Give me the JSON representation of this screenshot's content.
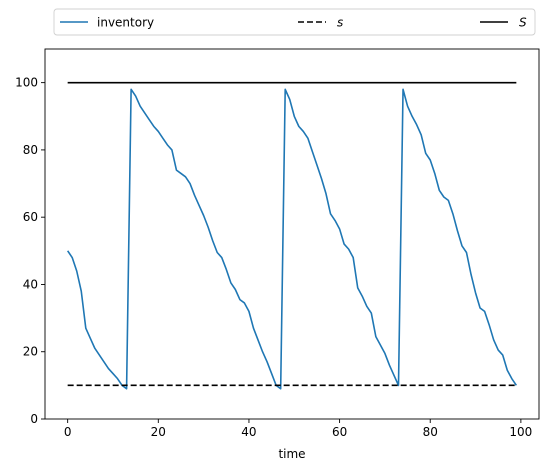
{
  "chart_data": {
    "type": "line",
    "title": "",
    "xlabel": "time",
    "ylabel": "",
    "xlim": [
      -5,
      104
    ],
    "ylim": [
      0,
      110
    ],
    "xticks": [
      0,
      20,
      40,
      60,
      80,
      100
    ],
    "yticks": [
      0,
      20,
      40,
      60,
      80,
      100
    ],
    "grid": false,
    "legend": {
      "placement": "top, above plot",
      "columns": 3
    },
    "series": [
      {
        "name": "inventory",
        "color": "#1f77b4",
        "style": "solid",
        "x": [
          0,
          1,
          2,
          3,
          4,
          5,
          6,
          7,
          8,
          9,
          10,
          11,
          12,
          13,
          14,
          15,
          16,
          17,
          18,
          19,
          20,
          21,
          22,
          23,
          24,
          25,
          26,
          27,
          28,
          29,
          30,
          31,
          32,
          33,
          34,
          35,
          36,
          37,
          38,
          39,
          40,
          41,
          42,
          43,
          44,
          45,
          46,
          47,
          48,
          49,
          50,
          51,
          52,
          53,
          54,
          55,
          56,
          57,
          58,
          59,
          60,
          61,
          62,
          63,
          64,
          65,
          66,
          67,
          68,
          69,
          70,
          71,
          72,
          73,
          74,
          75,
          76,
          77,
          78,
          79,
          80,
          81,
          82,
          83,
          84,
          85,
          86,
          87,
          88,
          89,
          90,
          91,
          92,
          93,
          94,
          95,
          96,
          97,
          98,
          99
        ],
        "y": [
          50,
          48,
          44,
          38,
          27,
          24,
          21,
          19,
          17,
          15,
          13.5,
          12,
          10,
          9,
          98,
          96,
          93,
          91,
          89,
          87,
          85.5,
          83.5,
          81.5,
          80,
          74,
          73,
          72,
          70,
          66.5,
          63.5,
          60.5,
          57,
          53,
          49.5,
          48,
          44.5,
          40.5,
          38.5,
          35.5,
          34.5,
          32,
          27,
          23.5,
          20,
          17,
          13.5,
          10,
          9,
          98,
          95,
          90,
          87,
          85.5,
          83.5,
          79.5,
          75.5,
          71.5,
          67,
          61,
          59,
          56.5,
          52,
          50.5,
          48,
          39,
          36.5,
          33.5,
          31.5,
          24.5,
          22,
          19.5,
          16,
          13,
          10,
          98,
          93,
          90,
          87.5,
          84.5,
          79,
          77,
          73,
          68,
          66,
          65,
          61,
          56,
          51.5,
          49.5,
          43,
          37.5,
          33,
          32,
          28,
          23.5,
          20.5,
          19,
          14.5,
          12,
          10
        ]
      },
      {
        "name": "s",
        "color": "#000000",
        "style": "dashed",
        "x": [
          0,
          99
        ],
        "y": [
          10,
          10
        ]
      },
      {
        "name": "S",
        "color": "#000000",
        "style": "solid",
        "x": [
          0,
          99
        ],
        "y": [
          100,
          100
        ]
      }
    ]
  }
}
